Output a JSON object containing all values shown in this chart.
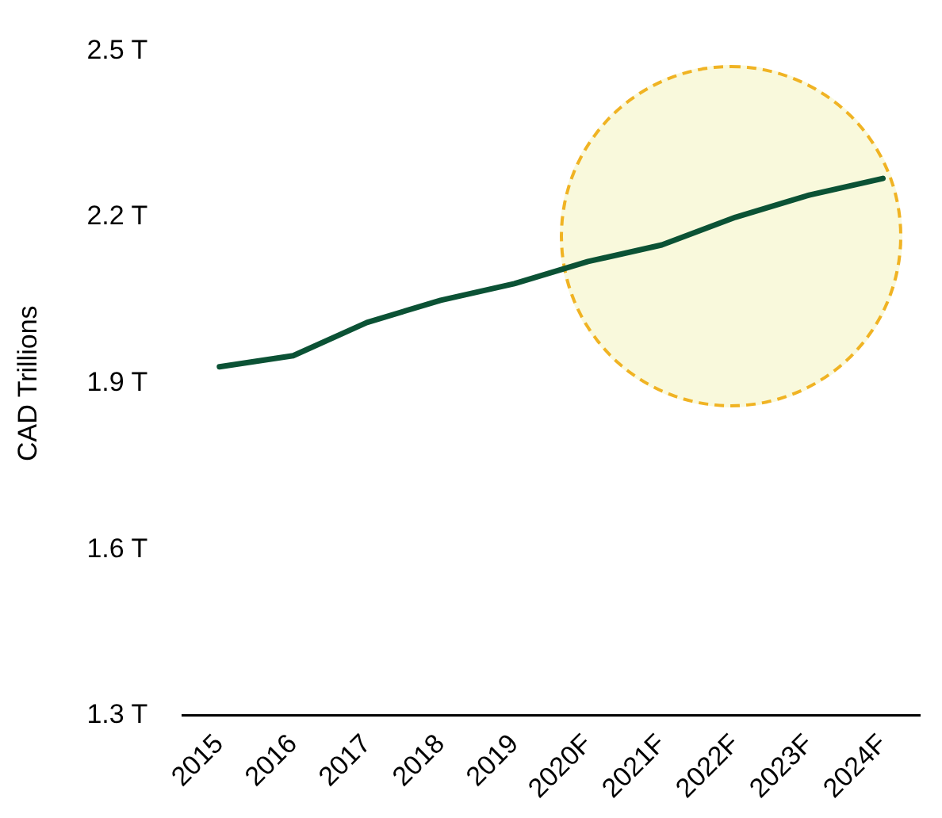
{
  "chart_data": {
    "type": "line",
    "ylabel": "CAD Trillions",
    "categories": [
      "2015",
      "2016",
      "2017",
      "2018",
      "2019",
      "2020F",
      "2021F",
      "2022F",
      "2023F",
      "2024F"
    ],
    "series": [
      {
        "color": "#0b5235",
        "values": [
          1.93,
          1.95,
          2.01,
          2.05,
          2.08,
          2.12,
          2.15,
          2.2,
          2.24,
          2.27
        ]
      }
    ],
    "ylim": [
      1.3,
      2.5
    ],
    "yticks": [
      {
        "value": 1.3,
        "label": "1.3 T"
      },
      {
        "value": 1.6,
        "label": "1.6 T"
      },
      {
        "value": 1.9,
        "label": "1.9 T"
      },
      {
        "value": 2.2,
        "label": "2.2 T"
      },
      {
        "value": 2.5,
        "label": "2.5 T"
      }
    ],
    "grid": false,
    "legend": false,
    "marker": "none",
    "line_style": "solid"
  }
}
